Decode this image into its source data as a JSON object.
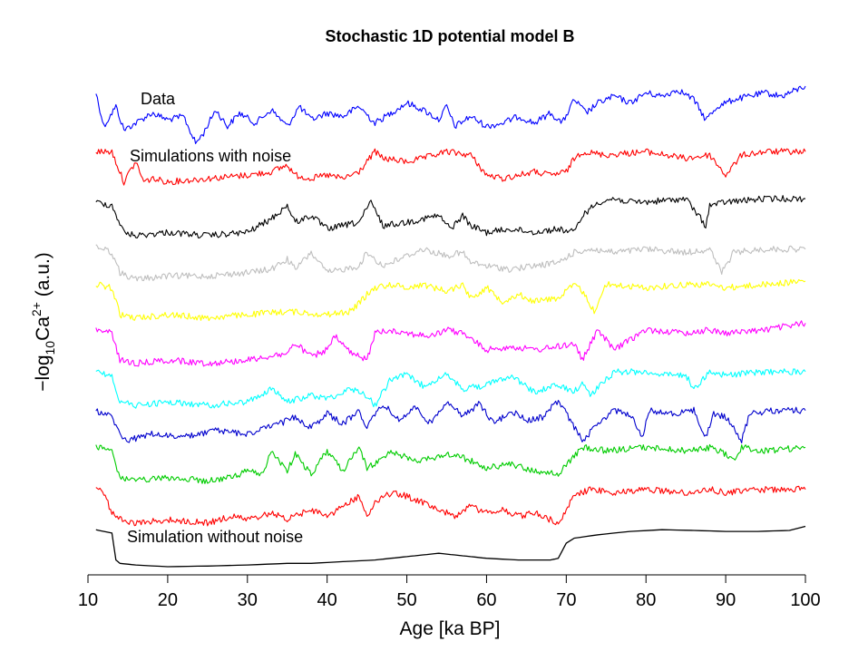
{
  "chart_data": {
    "type": "line",
    "title": "Stochastic 1D potential model B",
    "xlabel": "Age [ka BP]",
    "ylabel": {
      "prefix": "−log",
      "sub": "10",
      "base": "Ca",
      "sup": "2+",
      "suffix": " (a.u.)"
    },
    "xlim": [
      10,
      100
    ],
    "x_ticks": [
      10,
      20,
      30,
      40,
      50,
      60,
      70,
      80,
      90,
      100
    ],
    "y_ticks": "none",
    "grid": false,
    "legend": "none",
    "annotations": [
      "Data",
      "Simulations with noise",
      "Simulation without noise"
    ],
    "series": [
      {
        "color": "#0000FF",
        "offset": 0,
        "x": [
          11,
          12,
          13.5,
          14.5,
          16,
          18,
          20,
          22,
          23.5,
          24.5,
          26,
          27.5,
          29,
          31,
          33,
          35,
          36.5,
          38,
          40,
          42,
          44,
          46,
          48,
          50,
          52,
          54,
          55,
          56,
          58,
          60,
          62,
          64,
          66,
          68,
          69.5,
          71,
          72.5,
          74,
          76,
          78,
          80,
          82,
          84,
          86,
          87.5,
          89,
          91,
          93,
          95,
          97,
          99,
          100
        ],
        "y": [
          1.2,
          0.2,
          0.8,
          0.1,
          0.3,
          0.6,
          0.4,
          0.5,
          -0.3,
          0.0,
          0.7,
          0.2,
          0.6,
          0.3,
          0.7,
          0.2,
          0.8,
          0.4,
          0.6,
          0.5,
          0.8,
          0.3,
          0.6,
          0.9,
          0.7,
          0.4,
          0.8,
          0.2,
          0.5,
          0.2,
          0.3,
          0.5,
          0.3,
          0.6,
          0.3,
          1.0,
          0.6,
          0.9,
          1.1,
          0.9,
          1.2,
          1.1,
          1.3,
          1.0,
          0.4,
          0.8,
          1.0,
          1.1,
          1.2,
          1.1,
          1.3,
          1.4
        ]
      },
      {
        "color": "#FF0000",
        "offset": -1.55,
        "x": [
          11,
          13,
          14.5,
          16,
          17,
          18,
          20,
          25,
          30,
          33,
          35,
          36,
          38,
          40,
          42,
          44,
          46,
          47,
          50,
          52,
          55,
          58,
          60,
          62,
          64,
          66,
          68,
          70,
          71,
          72,
          75,
          80,
          85,
          88,
          90,
          92,
          95,
          100
        ],
        "y": [
          1.0,
          1.0,
          0.1,
          0.7,
          0.1,
          0.2,
          0.1,
          0.2,
          0.3,
          0.4,
          0.6,
          0.3,
          0.2,
          0.3,
          0.2,
          0.4,
          1.0,
          0.8,
          0.7,
          0.8,
          1.0,
          0.9,
          0.3,
          0.2,
          0.3,
          0.4,
          0.3,
          0.4,
          0.8,
          1.0,
          0.9,
          1.0,
          0.8,
          0.9,
          0.3,
          0.9,
          1.0,
          1.0
        ]
      },
      {
        "color": "#000000",
        "offset": -3.05,
        "x": [
          11,
          13,
          14.5,
          16,
          20,
          25,
          30,
          33,
          35,
          36,
          38,
          40,
          42,
          44,
          45.5,
          47,
          50,
          52,
          54,
          55.5,
          57,
          58,
          60,
          63,
          66,
          69,
          71,
          72,
          74,
          76,
          78,
          80,
          85,
          87.5,
          88,
          90,
          95,
          100
        ],
        "y": [
          1.0,
          0.9,
          0.1,
          0.0,
          0.1,
          0.0,
          0.1,
          0.5,
          0.9,
          0.4,
          0.6,
          0.2,
          0.3,
          0.4,
          1.0,
          0.3,
          0.4,
          0.5,
          0.6,
          0.2,
          0.6,
          0.3,
          0.1,
          0.2,
          0.1,
          0.2,
          0.1,
          0.6,
          1.0,
          1.1,
          1.0,
          1.0,
          1.1,
          0.3,
          0.9,
          1.0,
          1.1,
          1.1
        ]
      },
      {
        "color": "#BEBEBE",
        "offset": -4.35,
        "x": [
          11,
          13,
          14,
          16,
          20,
          25,
          30,
          33,
          35,
          36,
          38,
          40,
          42,
          44,
          45,
          47,
          50,
          52,
          55,
          57,
          58,
          60,
          63,
          66,
          69,
          71,
          73,
          76,
          80,
          85,
          88,
          89.5,
          91,
          95,
          100
        ],
        "y": [
          1.0,
          0.8,
          0.2,
          0.0,
          0.1,
          0.1,
          0.2,
          0.3,
          0.6,
          0.3,
          0.8,
          0.2,
          0.3,
          0.4,
          0.8,
          0.4,
          0.7,
          0.9,
          0.7,
          0.8,
          0.5,
          0.4,
          0.3,
          0.4,
          0.5,
          0.8,
          0.9,
          0.8,
          0.9,
          0.8,
          0.9,
          0.2,
          0.8,
          0.9,
          0.9
        ]
      },
      {
        "color": "#FFFF00",
        "offset": -5.5,
        "x": [
          11,
          13,
          14,
          16,
          20,
          25,
          30,
          35,
          40,
          43,
          45,
          46,
          48,
          50,
          52,
          55,
          57,
          58,
          60,
          62,
          64,
          66,
          69,
          71,
          72,
          73.5,
          75,
          80,
          85,
          88,
          90,
          95,
          100
        ],
        "y": [
          1.0,
          0.9,
          0.1,
          0.0,
          0.1,
          0.0,
          0.1,
          0.2,
          0.1,
          0.2,
          0.7,
          0.9,
          1.0,
          0.9,
          1.0,
          0.8,
          1.0,
          0.6,
          0.9,
          0.5,
          0.7,
          0.5,
          0.6,
          1.0,
          0.8,
          0.2,
          1.0,
          0.9,
          1.0,
          1.0,
          0.9,
          1.0,
          1.1
        ]
      },
      {
        "color": "#FF00FF",
        "offset": -6.85,
        "x": [
          11,
          13,
          14,
          16,
          20,
          25,
          30,
          35,
          36,
          38,
          40,
          41,
          43,
          45,
          46,
          48,
          50,
          53,
          55,
          57,
          60,
          63,
          66,
          69,
          71,
          72,
          74,
          76,
          80,
          85,
          88,
          90,
          95,
          100
        ],
        "y": [
          1.0,
          0.9,
          0.1,
          0.0,
          0.1,
          0.0,
          0.1,
          0.3,
          0.6,
          0.2,
          0.4,
          0.8,
          0.3,
          0.1,
          0.9,
          1.0,
          0.9,
          0.8,
          1.0,
          0.9,
          0.4,
          0.5,
          0.4,
          0.5,
          0.6,
          0.1,
          1.0,
          0.4,
          1.0,
          0.9,
          1.0,
          0.9,
          1.0,
          1.2
        ]
      },
      {
        "color": "#00FFFF",
        "offset": -8.1,
        "x": [
          11,
          13,
          14,
          16,
          20,
          25,
          30,
          33,
          35,
          38,
          40,
          43,
          45,
          46,
          48,
          50,
          52,
          55,
          57,
          60,
          63,
          66,
          69,
          71,
          72,
          73,
          76,
          80,
          83,
          85,
          86,
          88,
          90,
          95,
          100
        ],
        "y": [
          1.0,
          0.9,
          0.1,
          0.0,
          0.1,
          0.0,
          0.1,
          0.5,
          0.1,
          0.3,
          0.2,
          0.5,
          0.3,
          0.0,
          0.8,
          0.9,
          0.6,
          0.9,
          0.5,
          0.6,
          0.9,
          0.4,
          0.6,
          0.4,
          0.7,
          0.3,
          1.0,
          1.0,
          0.9,
          0.9,
          0.5,
          1.0,
          0.9,
          1.0,
          1.0
        ]
      },
      {
        "color": "#0000CD",
        "offset": -9.25,
        "x": [
          11,
          13,
          14,
          15,
          18,
          22,
          26,
          30,
          34,
          36,
          38,
          40,
          42,
          44,
          45,
          47,
          49,
          51,
          53,
          55,
          57,
          59,
          61,
          63,
          65,
          67,
          69,
          71,
          72,
          74,
          76,
          78,
          79.5,
          80.5,
          83,
          86,
          87.5,
          88.5,
          90,
          92,
          93,
          96,
          100
        ],
        "y": [
          1.0,
          0.8,
          0.3,
          0.1,
          0.3,
          0.2,
          0.4,
          0.3,
          0.6,
          0.8,
          0.5,
          0.9,
          0.6,
          1.0,
          0.5,
          1.2,
          0.7,
          1.1,
          0.6,
          1.3,
          0.8,
          1.2,
          0.6,
          1.0,
          0.7,
          0.8,
          1.3,
          0.5,
          0.1,
          0.6,
          1.0,
          0.9,
          0.2,
          1.0,
          0.9,
          1.0,
          0.2,
          0.9,
          0.8,
          0.1,
          0.9,
          1.0,
          1.0
        ]
      },
      {
        "color": "#00CC00",
        "offset": -10.35,
        "x": [
          11,
          13,
          14,
          16,
          20,
          25,
          28,
          30,
          32,
          33,
          35,
          36,
          38,
          40,
          42,
          44,
          45,
          46,
          48,
          50,
          52,
          55,
          57,
          60,
          63,
          66,
          69,
          70.5,
          72,
          75,
          80,
          85,
          88,
          90,
          91,
          92,
          95,
          100
        ],
        "y": [
          1.0,
          0.9,
          0.1,
          0.0,
          0.1,
          0.0,
          0.1,
          0.3,
          0.2,
          0.9,
          0.3,
          0.8,
          0.2,
          0.9,
          0.3,
          1.0,
          0.4,
          0.5,
          0.9,
          0.7,
          0.6,
          0.8,
          0.7,
          0.4,
          0.5,
          0.3,
          0.2,
          0.6,
          1.0,
          0.9,
          1.0,
          0.9,
          1.0,
          0.8,
          0.6,
          1.0,
          0.9,
          1.0
        ]
      },
      {
        "color": "#FF0000",
        "offset": -11.6,
        "x": [
          11,
          12,
          13,
          14,
          16,
          20,
          25,
          28,
          30,
          33,
          35,
          38,
          40,
          42,
          44,
          45,
          46,
          48,
          50,
          52,
          54,
          56,
          58,
          60,
          62,
          64,
          66,
          68,
          69,
          71,
          73,
          76,
          80,
          85,
          88,
          90,
          95,
          100
        ],
        "y": [
          1.0,
          0.9,
          0.3,
          0.1,
          0.0,
          0.1,
          0.0,
          0.2,
          0.1,
          0.3,
          0.1,
          0.4,
          0.2,
          0.5,
          0.8,
          0.2,
          0.6,
          0.9,
          0.8,
          0.6,
          0.4,
          0.2,
          0.5,
          0.3,
          0.4,
          0.2,
          0.3,
          0.1,
          0.0,
          0.8,
          1.0,
          0.9,
          1.0,
          0.9,
          1.0,
          0.9,
          1.0,
          1.0
        ]
      },
      {
        "color": "#000000",
        "offset": -13.0,
        "x": [
          11,
          13,
          13.5,
          14,
          16,
          20,
          25,
          30,
          35,
          38,
          42,
          46,
          48,
          50,
          52,
          54,
          56,
          58,
          60,
          64,
          68,
          69,
          70,
          71,
          74,
          78,
          82,
          86,
          90,
          94,
          98,
          100
        ],
        "y": [
          1.2,
          1.1,
          0.3,
          0.2,
          0.15,
          0.1,
          0.12,
          0.15,
          0.2,
          0.2,
          0.25,
          0.3,
          0.35,
          0.4,
          0.45,
          0.5,
          0.45,
          0.4,
          0.35,
          0.3,
          0.3,
          0.35,
          0.8,
          0.95,
          1.05,
          1.15,
          1.2,
          1.18,
          1.15,
          1.15,
          1.18,
          1.3
        ]
      }
    ]
  }
}
